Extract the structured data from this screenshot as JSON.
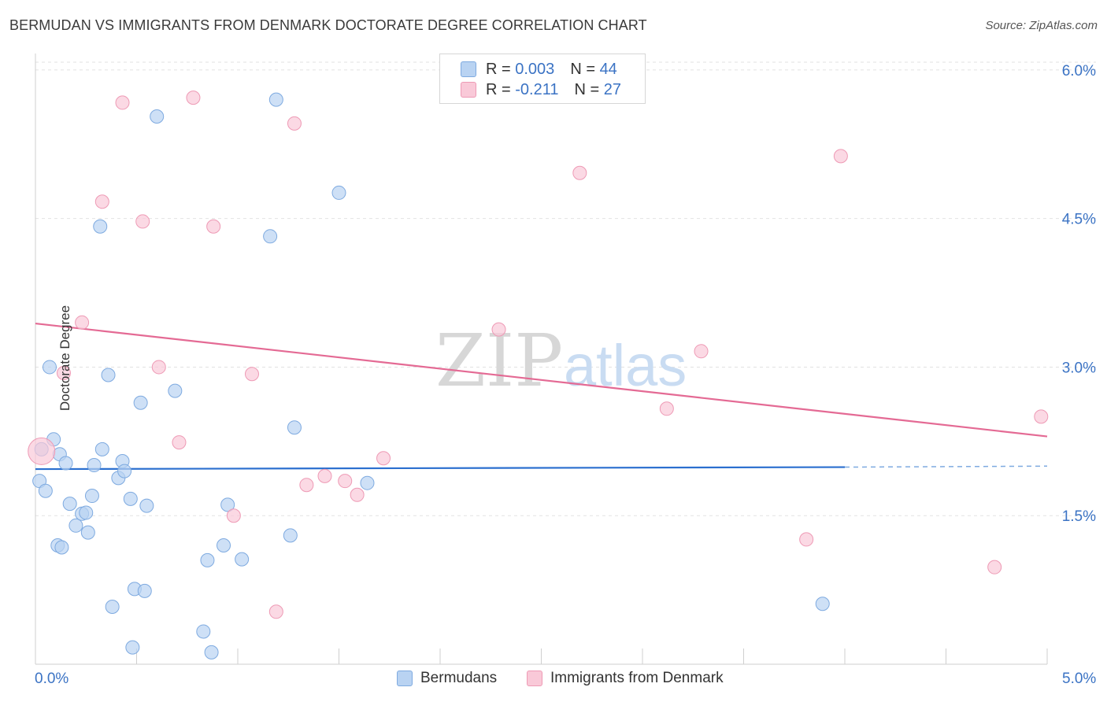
{
  "header": {
    "title": "BERMUDAN VS IMMIGRANTS FROM DENMARK DOCTORATE DEGREE CORRELATION CHART",
    "source": "Source: ZipAtlas.com"
  },
  "colors": {
    "blue_fill": "#b9d3f2",
    "blue_stroke": "#7eaae0",
    "blue_line": "#2b6fcf",
    "pink_fill": "#f9c9d8",
    "pink_stroke": "#ee9ab5",
    "pink_line": "#e46a94",
    "axis_text": "#3b73c4",
    "grid": "#e2e2e2"
  },
  "legend": {
    "r_label": "R =",
    "n_label": "N =",
    "series": [
      {
        "r": "0.003",
        "n": "44"
      },
      {
        "r": "-0.211",
        "n": "27"
      }
    ]
  },
  "watermark": {
    "zip": "ZIP",
    "atlas": "atlas"
  },
  "chart_data": {
    "type": "scatter",
    "title": "BERMUDAN VS IMMIGRANTS FROM DENMARK DOCTORATE DEGREE CORRELATION CHART",
    "xlabel": "",
    "ylabel": "Doctorate Degree",
    "xlim": [
      0,
      5
    ],
    "ylim": [
      0,
      6.15
    ],
    "x_tick_labels": [
      "0.0%",
      "5.0%"
    ],
    "y_ticks": [
      1.5,
      3.0,
      4.5,
      6.0
    ],
    "y_tick_labels": [
      "1.5%",
      "3.0%",
      "4.5%",
      "6.0%"
    ],
    "x_minor_ticks": [
      0.5,
      1.0,
      1.5,
      2.0,
      2.5,
      3.0,
      3.5,
      4.0,
      4.5,
      5.0
    ],
    "grid": true,
    "legend_position": "top-center",
    "series": [
      {
        "name": "Bermudans",
        "points": [
          [
            0.02,
            1.85
          ],
          [
            0.03,
            2.17
          ],
          [
            0.05,
            1.75
          ],
          [
            0.07,
            3.0
          ],
          [
            0.09,
            2.27
          ],
          [
            0.12,
            2.12
          ],
          [
            0.15,
            2.03
          ],
          [
            0.11,
            1.2
          ],
          [
            0.13,
            1.18
          ],
          [
            0.17,
            1.62
          ],
          [
            0.2,
            1.4
          ],
          [
            0.23,
            1.52
          ],
          [
            0.25,
            1.53
          ],
          [
            0.26,
            1.33
          ],
          [
            0.28,
            1.7
          ],
          [
            0.29,
            2.01
          ],
          [
            0.33,
            2.17
          ],
          [
            0.36,
            2.92
          ],
          [
            0.32,
            4.42
          ],
          [
            0.38,
            0.58
          ],
          [
            0.41,
            1.88
          ],
          [
            0.43,
            2.05
          ],
          [
            0.44,
            1.95
          ],
          [
            0.47,
            1.67
          ],
          [
            0.48,
            0.17
          ],
          [
            0.49,
            0.76
          ],
          [
            0.52,
            2.64
          ],
          [
            0.54,
            0.74
          ],
          [
            0.55,
            1.6
          ],
          [
            0.6,
            5.53
          ],
          [
            0.69,
            2.76
          ],
          [
            0.83,
            0.33
          ],
          [
            0.85,
            1.05
          ],
          [
            0.87,
            0.12
          ],
          [
            0.93,
            1.2
          ],
          [
            0.95,
            1.61
          ],
          [
            1.02,
            1.06
          ],
          [
            1.16,
            4.32
          ],
          [
            1.19,
            5.7
          ],
          [
            1.26,
            1.3
          ],
          [
            1.28,
            2.39
          ],
          [
            1.5,
            4.76
          ],
          [
            1.64,
            1.83
          ],
          [
            3.89,
            0.61
          ]
        ],
        "trend": {
          "x": [
            0.0,
            4.0
          ],
          "y": [
            1.97,
            1.99
          ],
          "dashed_extension_x": [
            4.0,
            5.0
          ],
          "dashed_extension_y": [
            1.99,
            2.0
          ]
        }
      },
      {
        "name": "Immigrants from Denmark",
        "points": [
          [
            0.03,
            2.15
          ],
          [
            0.14,
            2.94
          ],
          [
            0.23,
            3.45
          ],
          [
            0.33,
            4.67
          ],
          [
            0.43,
            5.67
          ],
          [
            0.53,
            4.47
          ],
          [
            0.61,
            3.0
          ],
          [
            0.71,
            2.24
          ],
          [
            0.78,
            5.72
          ],
          [
            0.88,
            4.42
          ],
          [
            0.98,
            1.5
          ],
          [
            1.07,
            2.93
          ],
          [
            1.19,
            0.53
          ],
          [
            1.28,
            5.46
          ],
          [
            1.34,
            1.81
          ],
          [
            1.43,
            1.9
          ],
          [
            1.53,
            1.85
          ],
          [
            1.59,
            1.71
          ],
          [
            1.72,
            2.08
          ],
          [
            2.29,
            3.38
          ],
          [
            2.69,
            4.96
          ],
          [
            3.12,
            2.58
          ],
          [
            3.29,
            3.16
          ],
          [
            3.81,
            1.26
          ],
          [
            3.98,
            5.13
          ],
          [
            4.74,
            0.98
          ],
          [
            4.97,
            2.5
          ]
        ],
        "trend": {
          "x": [
            0.0,
            5.0
          ],
          "y": [
            3.44,
            2.3
          ]
        }
      }
    ]
  }
}
